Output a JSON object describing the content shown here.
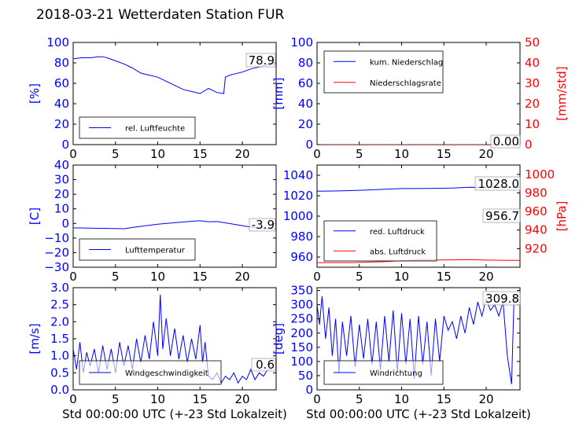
{
  "title": "2018-03-21 Wetterdaten Station FUR\u0018",
  "colors": {
    "primary": "#0000ff",
    "secondary": "#ff0000",
    "text": "#000000"
  },
  "chart_data": [
    {
      "type": "line",
      "ylabel": "[%]",
      "xlim": [
        0,
        24
      ],
      "ylim": [
        0,
        100
      ],
      "yticks": [
        "0",
        "20",
        "40",
        "60",
        "80",
        "100"
      ],
      "xticks": [
        "0",
        "5",
        "10",
        "15",
        "20"
      ],
      "legend": "bottom-left",
      "annotation": "78.9",
      "series": [
        {
          "name": "rel. Luftfeuchte",
          "color": "#0000ff",
          "x": [
            0,
            1,
            2,
            3,
            3.5,
            4,
            5,
            6,
            7,
            8,
            9,
            10,
            11,
            12,
            13,
            14,
            15,
            16,
            17,
            17.8,
            18,
            18.5,
            19,
            20,
            21,
            22,
            23,
            24
          ],
          "y": [
            84,
            85,
            85,
            86,
            86,
            85,
            82,
            79,
            75,
            70,
            68,
            66,
            62,
            58,
            54,
            52,
            50,
            55,
            51,
            50,
            66,
            68,
            69,
            71,
            74,
            76,
            78,
            79
          ]
        }
      ]
    },
    {
      "type": "line",
      "ylabel": "[mm]",
      "ylabel_right": "[mm/std]",
      "xlim": [
        0,
        24
      ],
      "ylim": [
        0,
        100
      ],
      "ylim_right": [
        0,
        50
      ],
      "yticks": [
        "0",
        "20",
        "40",
        "60",
        "80",
        "100"
      ],
      "yticks_right": [
        "0",
        "10",
        "20",
        "30",
        "40",
        "50"
      ],
      "xticks": [
        "0",
        "5",
        "10",
        "15",
        "20"
      ],
      "legend": "top-left",
      "annotation": "0.00",
      "series": [
        {
          "name": "kum. Niederschlag",
          "color": "#0000ff",
          "x": [
            0,
            24
          ],
          "y": [
            0,
            0
          ]
        },
        {
          "name": "Niederschlagsrate",
          "color": "#ff0000",
          "x": [
            0,
            24
          ],
          "y": [
            0,
            0
          ]
        }
      ]
    },
    {
      "type": "line",
      "ylabel": "[C]",
      "xlim": [
        0,
        24
      ],
      "ylim": [
        -30,
        40
      ],
      "yticks": [
        "−30",
        "−20",
        "−10",
        "0",
        "10",
        "20",
        "30",
        "40"
      ],
      "xticks": [
        "0",
        "5",
        "10",
        "15",
        "20"
      ],
      "legend": "bottom-left",
      "annotation": "-3.9",
      "series": [
        {
          "name": "Lufttemperatur",
          "color": "#0000ff",
          "x": [
            0,
            2,
            4,
            6,
            8,
            10,
            12,
            14,
            15,
            16,
            17,
            18,
            20,
            22,
            24
          ],
          "y": [
            -3,
            -3.2,
            -3.4,
            -3.6,
            -2,
            -0.5,
            0.5,
            1.5,
            1.8,
            1.2,
            1.3,
            0.4,
            -1.5,
            -3.5,
            -3.9
          ]
        }
      ]
    },
    {
      "type": "line",
      "ylabel_right": "[hPa]",
      "xlim": [
        0,
        24
      ],
      "ylim": [
        950,
        1050
      ],
      "ylim_right": [
        900,
        1010
      ],
      "yticks": [
        "960",
        "980",
        "1000",
        "1020",
        "1040"
      ],
      "yticks_right": [
        "920",
        "940",
        "960",
        "980",
        "1000"
      ],
      "xticks": [
        "0",
        "5",
        "10",
        "15",
        "20"
      ],
      "legend": "bottom-left",
      "annotations": [
        "1028.0",
        "956.7"
      ],
      "series": [
        {
          "name": "red. Luftdruck",
          "color": "#0000ff",
          "x": [
            0,
            2,
            4,
            6,
            8,
            10,
            12,
            14,
            16,
            18,
            20,
            22,
            24
          ],
          "y": [
            1024.5,
            1024.6,
            1025.0,
            1025.5,
            1026.3,
            1027.0,
            1027.0,
            1027.2,
            1027.5,
            1028.2,
            1028.0,
            1028.0,
            1028.0
          ]
        },
        {
          "name": "abs. Luftdruck",
          "color": "#ff0000",
          "x": [
            0,
            2,
            4,
            6,
            8,
            10,
            12,
            14,
            16,
            18,
            20,
            22,
            24
          ],
          "y": [
            954.5,
            954.5,
            954.5,
            955.0,
            955.5,
            956.5,
            957.0,
            957.0,
            957.2,
            957.5,
            957.0,
            956.8,
            956.7
          ]
        }
      ]
    },
    {
      "type": "line",
      "ylabel": "[m/s]",
      "xlabel": "Std 00:00:00 UTC (+-23 Std Lokalzeit)",
      "xlim": [
        0,
        24
      ],
      "ylim": [
        0,
        3
      ],
      "yticks": [
        "0.0",
        "0.5",
        "1.0",
        "1.5",
        "2.0",
        "2.5",
        "3.0"
      ],
      "xticks": [
        "0",
        "5",
        "10",
        "15",
        "20"
      ],
      "legend": "bottom-left",
      "annotation": "0.6",
      "series": [
        {
          "name": "Windgeschwindigkeit",
          "color": "#0000ff",
          "x": [
            0,
            0.4,
            0.8,
            1.2,
            1.6,
            2,
            2.5,
            3,
            3.5,
            4,
            4.5,
            5,
            5.5,
            6,
            6.5,
            7,
            7.5,
            8,
            8.5,
            9,
            9.5,
            10,
            10.3,
            10.6,
            11,
            11.5,
            12,
            12.5,
            13,
            13.5,
            14,
            14.5,
            15,
            15.3,
            15.6,
            16,
            16.5,
            17,
            17.5,
            18,
            18.5,
            19,
            19.5,
            20,
            20.5,
            21,
            21.5,
            22,
            22.5,
            23,
            23.5
          ],
          "y": [
            1.2,
            0.6,
            1.4,
            0.5,
            1.1,
            0.7,
            1.2,
            0.5,
            1.3,
            0.6,
            1.2,
            0.5,
            1.4,
            0.7,
            1.3,
            0.6,
            1.5,
            0.8,
            1.6,
            0.9,
            2.0,
            1.0,
            2.8,
            1.2,
            2.1,
            1.0,
            1.8,
            0.9,
            1.6,
            0.8,
            1.5,
            0.9,
            1.9,
            0.8,
            1.4,
            0.4,
            0.3,
            0.5,
            0.2,
            0.4,
            0.3,
            0.5,
            0.2,
            0.4,
            0.3,
            0.6,
            0.3,
            0.5,
            0.4,
            0.6,
            0.6
          ]
        }
      ]
    },
    {
      "type": "line",
      "ylabel": "[deg]",
      "xlabel": "Std 00:00:00 UTC (+-23 Std Lokalzeit)",
      "xlim": [
        0,
        24
      ],
      "ylim": [
        0,
        360
      ],
      "yticks": [
        "0",
        "50",
        "100",
        "150",
        "200",
        "250",
        "300",
        "350"
      ],
      "xticks": [
        "0",
        "5",
        "10",
        "15",
        "20"
      ],
      "legend": "bottom-left",
      "annotation": "309.8",
      "series": [
        {
          "name": "Windrichtung",
          "color": "#0000ff",
          "x": [
            0,
            0.3,
            0.6,
            1,
            1.4,
            1.8,
            2.2,
            2.6,
            3,
            3.5,
            4,
            4.5,
            5,
            5.5,
            6,
            6.5,
            7,
            7.5,
            8,
            8.5,
            9,
            9.5,
            10,
            10.5,
            11,
            11.5,
            12,
            12.5,
            13,
            13.5,
            14,
            14.5,
            15,
            15.5,
            16,
            16.5,
            17,
            17.5,
            18,
            18.5,
            19,
            19.5,
            20,
            20.5,
            21,
            21.5,
            22,
            22.5,
            23,
            23.3,
            23.6
          ],
          "y": [
            300,
            230,
            330,
            180,
            290,
            120,
            250,
            60,
            240,
            120,
            260,
            80,
            230,
            110,
            250,
            90,
            240,
            70,
            260,
            100,
            280,
            60,
            270,
            90,
            250,
            40,
            260,
            90,
            240,
            50,
            250,
            100,
            260,
            210,
            240,
            180,
            260,
            200,
            290,
            230,
            310,
            260,
            320,
            280,
            300,
            260,
            310,
            120,
            20,
            330,
            310
          ]
        }
      ]
    }
  ]
}
